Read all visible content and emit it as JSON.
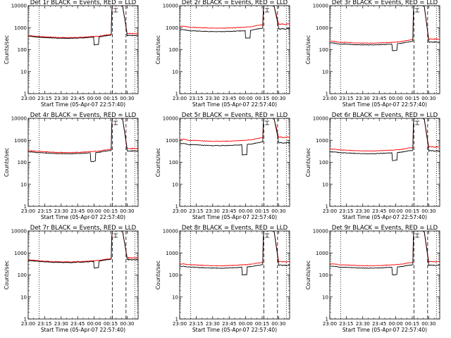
{
  "chart_data": {
    "type": "line",
    "grid": false,
    "legend": "none",
    "xlabel": "Start Time (05-Apr-07 22:57:40)",
    "ylabel": "Counts/sec",
    "x_tick_labels": [
      "23:00",
      "23:15",
      "23:30",
      "23:45",
      "00:00",
      "00:15",
      "00:30"
    ],
    "x_tick_minutes": [
      0,
      15,
      30,
      45,
      60,
      75,
      90
    ],
    "xlim_minutes": [
      0,
      100
    ],
    "y_scale": "log",
    "ylim": [
      1,
      10000
    ],
    "y_tick_values": [
      1,
      10,
      100,
      1000,
      10000
    ],
    "y_tick_labels": [
      "1",
      "10",
      "100",
      "1000",
      "10000"
    ],
    "colors": {
      "events": "#000000",
      "lld": "#ff0000"
    },
    "vlines": [
      {
        "style": "dotted",
        "minute": 10
      },
      {
        "style": "dashed",
        "minute": 76.5
      },
      {
        "style": "dashed",
        "minute": 89
      },
      {
        "style": "dotted",
        "minute": 97
      }
    ],
    "panels": [
      {
        "title": "Det 1r BLACK = Events, RED = LLD",
        "events_base": 400,
        "lld_base": 430,
        "dip_depth": 0.45,
        "dip_start": 60,
        "dip_end": 64,
        "bump": 1.2
      },
      {
        "title": "Det 2r BLACK = Events, RED = LLD",
        "events_base": 800,
        "lld_base": 1150,
        "dip_depth": 0.45,
        "dip_start": 60,
        "dip_end": 64,
        "bump": 1.4
      },
      {
        "title": "Det 3r BLACK = Events, RED = LLD",
        "events_base": 200,
        "lld_base": 240,
        "dip_depth": 0.5,
        "dip_start": 57,
        "dip_end": 61,
        "bump": 1.3
      },
      {
        "title": "Det 4r BLACK = Events, RED = LLD",
        "events_base": 300,
        "lld_base": 340,
        "dip_depth": 0.4,
        "dip_start": 57,
        "dip_end": 61,
        "bump": 1.2
      },
      {
        "title": "Det 5r BLACK = Events, RED = LLD",
        "events_base": 700,
        "lld_base": 1100,
        "dip_depth": 0.35,
        "dip_start": 57,
        "dip_end": 61,
        "bump": 1.5
      },
      {
        "title": "Det 6r BLACK = Events, RED = LLD",
        "events_base": 300,
        "lld_base": 400,
        "dip_depth": 0.45,
        "dip_start": 57,
        "dip_end": 61,
        "bump": 1.3
      },
      {
        "title": "Det 7r BLACK = Events, RED = LLD",
        "events_base": 450,
        "lld_base": 480,
        "dip_depth": 0.5,
        "dip_start": 60,
        "dip_end": 64,
        "bump": 1.1
      },
      {
        "title": "Det 8r BLACK = Events, RED = LLD",
        "events_base": 250,
        "lld_base": 320,
        "dip_depth": 0.45,
        "dip_start": 57,
        "dip_end": 61,
        "bump": 1.3
      },
      {
        "title": "Det 9r BLACK = Events, RED = LLD",
        "events_base": 250,
        "lld_base": 320,
        "dip_depth": 0.45,
        "dip_start": 57,
        "dip_end": 61,
        "bump": 1.3
      }
    ]
  }
}
